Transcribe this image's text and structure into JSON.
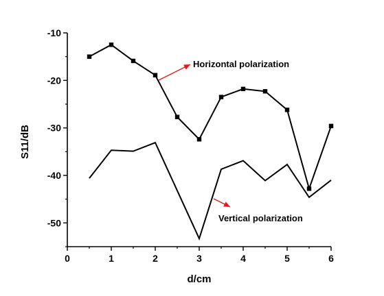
{
  "chart_data": {
    "type": "line",
    "xlabel": "d/cm",
    "ylabel": "S11/dB",
    "xlim": [
      0,
      6
    ],
    "ylim": [
      -55,
      -10
    ],
    "xticks": [
      0,
      1,
      2,
      3,
      4,
      5,
      6
    ],
    "yticks": [
      -10,
      -20,
      -30,
      -40,
      -50
    ],
    "grid": false,
    "annotation_color": "#e8161b",
    "series": [
      {
        "name": "Horizontal polarization",
        "marker": "square",
        "x": [
          0.5,
          1.0,
          1.5,
          2.0,
          2.5,
          3.0,
          3.5,
          4.0,
          4.5,
          5.0,
          5.5,
          6.0
        ],
        "y": [
          -15.0,
          -12.5,
          -15.9,
          -18.9,
          -27.7,
          -32.4,
          -23.5,
          -21.8,
          -22.3,
          -26.2,
          -42.8,
          -29.6
        ]
      },
      {
        "name": "Vertical polarization",
        "marker": "none",
        "x": [
          0.5,
          1.0,
          1.5,
          2.0,
          3.0,
          3.5,
          4.0,
          4.5,
          5.0,
          5.5,
          6.0
        ],
        "y": [
          -40.6,
          -34.7,
          -34.9,
          -33.1,
          -53.3,
          -38.7,
          -36.9,
          -41.1,
          -37.7,
          -44.6,
          -41.0
        ]
      }
    ]
  }
}
